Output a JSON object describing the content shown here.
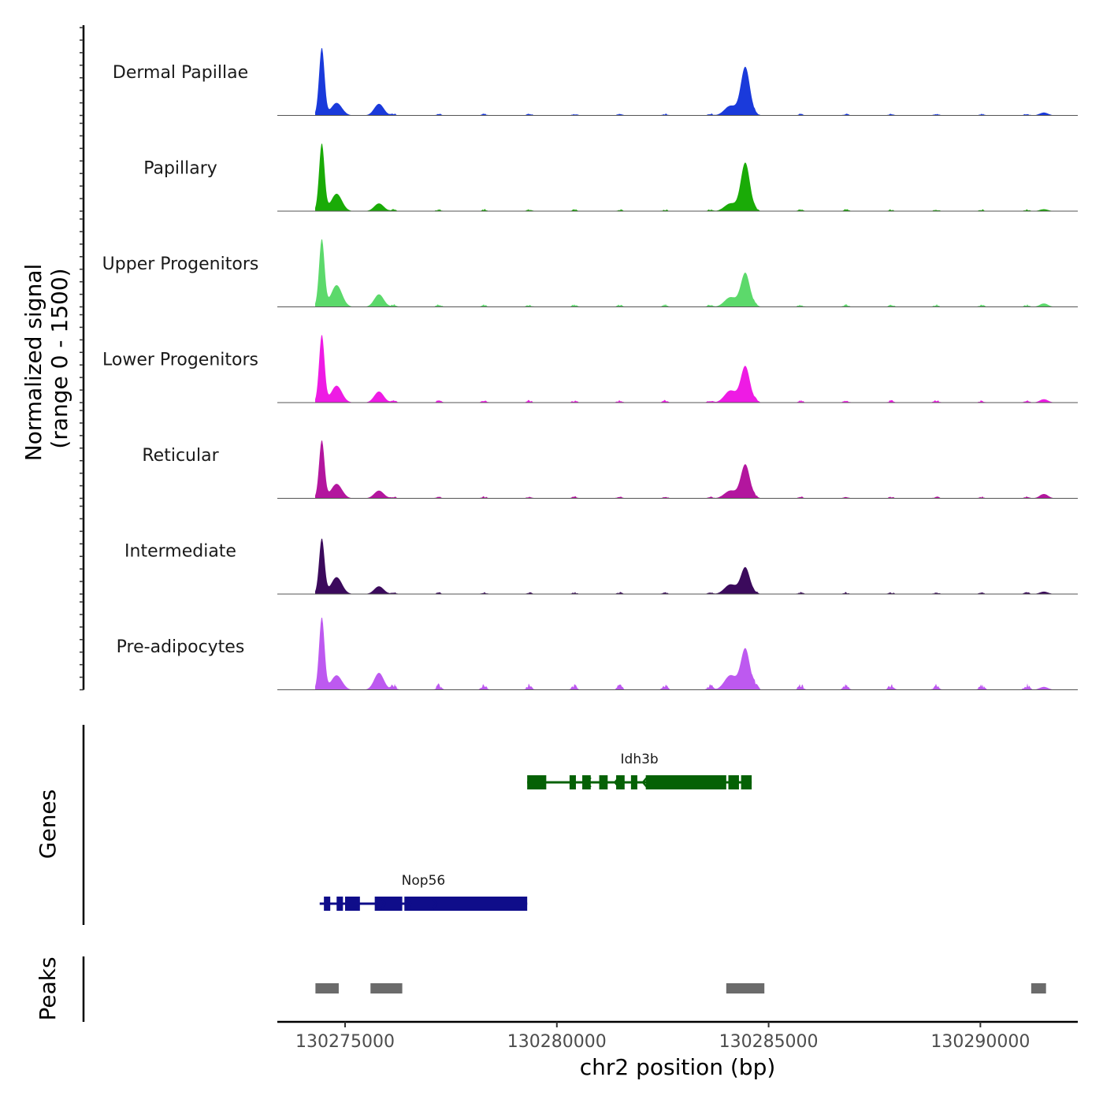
{
  "chart_data": {
    "type": "area",
    "title": "",
    "xlabel": "chr2 position (bp)",
    "ylabel_lines": [
      "Normalized signal",
      "(range 0 - 1500)"
    ],
    "ylim": [
      0,
      1500
    ],
    "xlim": [
      130273400,
      130292300
    ],
    "x_ticks": [
      130275000,
      130280000,
      130285000,
      130290000
    ],
    "x_tick_labels": [
      "130275000",
      "130280000",
      "130285000",
      "130290000"
    ],
    "peak_positions": [
      130274450,
      130274800,
      130275800,
      130284100,
      130284450,
      130291500
    ],
    "series": [
      {
        "name": "Dermal Papillae",
        "color": "#1a3adb",
        "heights": [
          1400,
          260,
          240,
          200,
          1000,
          60
        ],
        "tail": 30
      },
      {
        "name": "Papillary",
        "color": "#1aab07",
        "heights": [
          1400,
          360,
          160,
          160,
          1000,
          40
        ],
        "tail": 30
      },
      {
        "name": "Upper Progenitors",
        "color": "#5cd96b",
        "heights": [
          1400,
          450,
          260,
          200,
          700,
          70
        ],
        "tail": 40
      },
      {
        "name": "Lower Progenitors",
        "color": "#ee1be4",
        "heights": [
          1400,
          350,
          230,
          250,
          750,
          70
        ],
        "tail": 40
      },
      {
        "name": "Reticular",
        "color": "#b3169e",
        "heights": [
          1200,
          300,
          160,
          160,
          700,
          90
        ],
        "tail": 30
      },
      {
        "name": "Intermediate",
        "color": "#3b0a5c",
        "heights": [
          1150,
          350,
          160,
          200,
          550,
          50
        ],
        "tail": 30
      },
      {
        "name": "Pre-adipocytes",
        "color": "#bd59f0",
        "heights": [
          1500,
          300,
          350,
          300,
          850,
          60
        ],
        "tail": 90
      }
    ],
    "genes_title": "Genes",
    "genes": [
      {
        "name": "Idh3b",
        "start": 130279300,
        "end": 130284600,
        "strand": "-",
        "color": "#056105",
        "exons": [
          [
            130279300,
            130279750
          ],
          [
            130280300,
            130280450
          ],
          [
            130280600,
            130280800
          ],
          [
            130281000,
            130281200
          ],
          [
            130281400,
            130281600
          ],
          [
            130281750,
            130281900
          ],
          [
            130282100,
            130284000
          ],
          [
            130284050,
            130284300
          ],
          [
            130284350,
            130284600
          ]
        ]
      },
      {
        "name": "Nop56",
        "start": 130274400,
        "end": 130279300,
        "strand": "+",
        "color": "#0f0d8a",
        "exons": [
          [
            130274500,
            130274650
          ],
          [
            130274800,
            130274950
          ],
          [
            130275000,
            130275350
          ],
          [
            130275700,
            130276350
          ],
          [
            130276400,
            130279300
          ]
        ]
      }
    ],
    "peaks_title": "Peaks",
    "peaks": [
      [
        130274300,
        130274850
      ],
      [
        130275600,
        130276350
      ],
      [
        130284000,
        130284900
      ],
      [
        130291200,
        130291550
      ]
    ]
  }
}
